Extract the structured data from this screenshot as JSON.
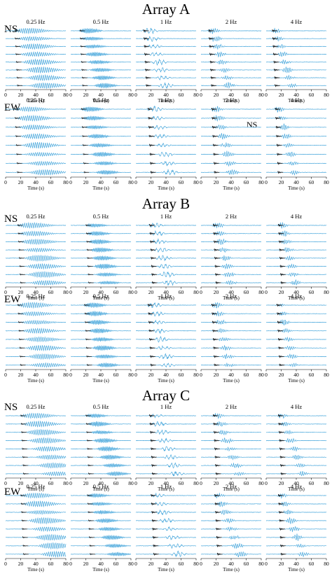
{
  "figure": {
    "freq_labels": [
      "0.25 Hz",
      "0.5 Hz",
      "1 Hz",
      "2 Hz",
      "4 Hz"
    ],
    "axis_title": "Time (s)",
    "ticks": [
      "0",
      "20",
      "40",
      "60",
      "80"
    ],
    "note_label": "NS",
    "colors": {
      "trace": "#4aa8dc",
      "reference": "#111111",
      "axis": "#000000"
    }
  },
  "chart_data": {
    "type": "line",
    "description_kind": "waveform record sections",
    "x_axis": {
      "label": "Time (s)",
      "range": [
        0,
        80
      ],
      "ticks": [
        0,
        20,
        40,
        60,
        80
      ]
    },
    "columns": [
      "0.25 Hz",
      "0.5 Hz",
      "1 Hz",
      "2 Hz",
      "4 Hz"
    ],
    "traces_per_panel": 8,
    "arrays": [
      {
        "title": "Array A",
        "components": [
          {
            "label": "NS",
            "arrival_time_s": [
              [
                10,
                18
              ],
              [
                10,
                18
              ],
              [
                8,
                16
              ],
              [
                8,
                16
              ],
              [
                6,
                14
              ]
            ],
            "moveout_s_per_trace": 3.0
          },
          {
            "label": "EW",
            "arrival_time_s": [
              [
                10,
                18
              ],
              [
                12,
                20
              ],
              [
                14,
                22
              ],
              [
                12,
                20
              ],
              [
                10,
                18
              ]
            ],
            "moveout_s_per_trace": 3.0
          }
        ]
      },
      {
        "title": "Array B",
        "components": [
          {
            "label": "NS",
            "arrival_time_s": [
              [
                14,
                22
              ],
              [
                18,
                26
              ],
              [
                16,
                24
              ],
              [
                14,
                22
              ],
              [
                14,
                22
              ]
            ],
            "moveout_s_per_trace": 2.5
          },
          {
            "label": "EW",
            "arrival_time_s": [
              [
                14,
                22
              ],
              [
                16,
                24
              ],
              [
                14,
                22
              ],
              [
                12,
                20
              ],
              [
                12,
                20
              ]
            ],
            "moveout_s_per_trace": 2.5
          }
        ]
      },
      {
        "title": "Array C",
        "components": [
          {
            "label": "NS",
            "arrival_time_s": [
              [
                18,
                26
              ],
              [
                18,
                26
              ],
              [
                16,
                24
              ],
              [
                14,
                22
              ],
              [
                14,
                22
              ]
            ],
            "moveout_s_per_trace": 4.0
          },
          {
            "label": "EW",
            "arrival_time_s": [
              [
                18,
                26
              ],
              [
                20,
                28
              ],
              [
                18,
                26
              ],
              [
                16,
                24
              ],
              [
                14,
                22
              ]
            ],
            "moveout_s_per_trace": 4.0
          }
        ]
      }
    ]
  }
}
